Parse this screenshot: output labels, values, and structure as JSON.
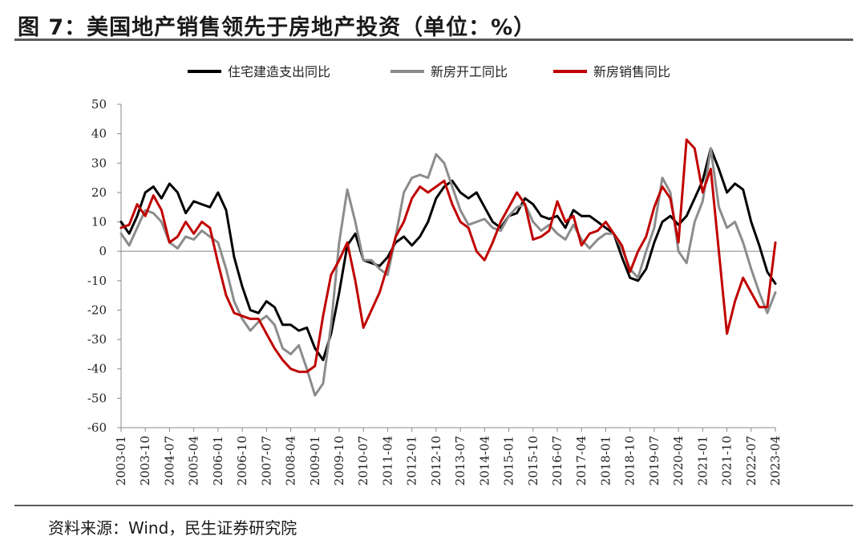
{
  "header": {
    "title": "图 7：美国地产销售领先于房地产投资（单位：%）"
  },
  "footer": {
    "source": "资料来源：Wind，民生证券研究院"
  },
  "chart_data": {
    "type": "line",
    "title": "",
    "xlabel": "",
    "ylabel": "",
    "ylim": [
      -60,
      50
    ],
    "yticks": [
      50,
      40,
      30,
      20,
      10,
      0,
      -10,
      -20,
      -30,
      -40,
      -50,
      -60
    ],
    "xticks": [
      "2003-01",
      "2003-10",
      "2004-07",
      "2005-04",
      "2006-01",
      "2006-10",
      "2007-07",
      "2008-04",
      "2009-01",
      "2009-10",
      "2010-07",
      "2011-04",
      "2012-01",
      "2012-10",
      "2013-07",
      "2014-04",
      "2015-01",
      "2015-10",
      "2016-07",
      "2017-04",
      "2018-01",
      "2018-10",
      "2019-07",
      "2020-04",
      "2021-01",
      "2021-10",
      "2022-07",
      "2023-04"
    ],
    "x_range": [
      "2003-01",
      "2023-04"
    ],
    "legend_position": "top",
    "grid": false,
    "series": [
      {
        "name": "住宅建造支出同比",
        "color": "#000000",
        "points": [
          [
            "2003-01",
            10
          ],
          [
            "2003-04",
            6
          ],
          [
            "2003-07",
            12
          ],
          [
            "2003-10",
            20
          ],
          [
            "2004-01",
            22
          ],
          [
            "2004-04",
            18
          ],
          [
            "2004-07",
            23
          ],
          [
            "2004-10",
            20
          ],
          [
            "2005-01",
            13
          ],
          [
            "2005-04",
            17
          ],
          [
            "2005-07",
            16
          ],
          [
            "2005-10",
            15
          ],
          [
            "2006-01",
            20
          ],
          [
            "2006-04",
            14
          ],
          [
            "2006-07",
            -2
          ],
          [
            "2006-10",
            -12
          ],
          [
            "2007-01",
            -20
          ],
          [
            "2007-04",
            -21
          ],
          [
            "2007-07",
            -17
          ],
          [
            "2007-10",
            -19
          ],
          [
            "2008-01",
            -25
          ],
          [
            "2008-04",
            -25
          ],
          [
            "2008-07",
            -27
          ],
          [
            "2008-10",
            -26
          ],
          [
            "2009-01",
            -33
          ],
          [
            "2009-04",
            -37
          ],
          [
            "2009-07",
            -28
          ],
          [
            "2009-10",
            -14
          ],
          [
            "2010-01",
            2
          ],
          [
            "2010-04",
            6
          ],
          [
            "2010-07",
            -3
          ],
          [
            "2010-10",
            -4
          ],
          [
            "2011-01",
            -5
          ],
          [
            "2011-04",
            -2
          ],
          [
            "2011-07",
            3
          ],
          [
            "2011-10",
            5
          ],
          [
            "2012-01",
            2
          ],
          [
            "2012-04",
            5
          ],
          [
            "2012-07",
            10
          ],
          [
            "2012-10",
            18
          ],
          [
            "2013-01",
            22
          ],
          [
            "2013-04",
            24
          ],
          [
            "2013-07",
            20
          ],
          [
            "2013-10",
            18
          ],
          [
            "2014-01",
            20
          ],
          [
            "2014-04",
            15
          ],
          [
            "2014-07",
            10
          ],
          [
            "2014-10",
            8
          ],
          [
            "2015-01",
            12
          ],
          [
            "2015-04",
            13
          ],
          [
            "2015-07",
            18
          ],
          [
            "2015-10",
            16
          ],
          [
            "2016-01",
            12
          ],
          [
            "2016-04",
            11
          ],
          [
            "2016-07",
            12
          ],
          [
            "2016-10",
            8
          ],
          [
            "2017-01",
            14
          ],
          [
            "2017-04",
            12
          ],
          [
            "2017-07",
            12
          ],
          [
            "2017-10",
            10
          ],
          [
            "2018-01",
            8
          ],
          [
            "2018-04",
            6
          ],
          [
            "2018-07",
            -2
          ],
          [
            "2018-10",
            -9
          ],
          [
            "2019-01",
            -10
          ],
          [
            "2019-04",
            -6
          ],
          [
            "2019-07",
            3
          ],
          [
            "2019-10",
            10
          ],
          [
            "2020-01",
            12
          ],
          [
            "2020-04",
            9
          ],
          [
            "2020-07",
            12
          ],
          [
            "2020-10",
            18
          ],
          [
            "2021-01",
            24
          ],
          [
            "2021-04",
            35
          ],
          [
            "2021-07",
            28
          ],
          [
            "2021-10",
            20
          ],
          [
            "2022-01",
            23
          ],
          [
            "2022-04",
            21
          ],
          [
            "2022-07",
            10
          ],
          [
            "2022-10",
            2
          ],
          [
            "2023-01",
            -7
          ],
          [
            "2023-04",
            -11
          ]
        ]
      },
      {
        "name": "新房开工同比",
        "color": "#8c8c8c",
        "points": [
          [
            "2003-01",
            6
          ],
          [
            "2003-04",
            2
          ],
          [
            "2003-07",
            8
          ],
          [
            "2003-10",
            14
          ],
          [
            "2004-01",
            13
          ],
          [
            "2004-04",
            10
          ],
          [
            "2004-07",
            3
          ],
          [
            "2004-10",
            1
          ],
          [
            "2005-01",
            5
          ],
          [
            "2005-04",
            4
          ],
          [
            "2005-07",
            7
          ],
          [
            "2005-10",
            5
          ],
          [
            "2006-01",
            3
          ],
          [
            "2006-04",
            -6
          ],
          [
            "2006-07",
            -17
          ],
          [
            "2006-10",
            -23
          ],
          [
            "2007-01",
            -27
          ],
          [
            "2007-04",
            -24
          ],
          [
            "2007-07",
            -22
          ],
          [
            "2007-10",
            -25
          ],
          [
            "2008-01",
            -33
          ],
          [
            "2008-04",
            -35
          ],
          [
            "2008-07",
            -32
          ],
          [
            "2008-10",
            -40
          ],
          [
            "2009-01",
            -49
          ],
          [
            "2009-04",
            -45
          ],
          [
            "2009-07",
            -25
          ],
          [
            "2009-10",
            3
          ],
          [
            "2010-01",
            21
          ],
          [
            "2010-04",
            10
          ],
          [
            "2010-07",
            -3
          ],
          [
            "2010-10",
            -3
          ],
          [
            "2011-01",
            -6
          ],
          [
            "2011-04",
            -8
          ],
          [
            "2011-07",
            5
          ],
          [
            "2011-10",
            20
          ],
          [
            "2012-01",
            25
          ],
          [
            "2012-04",
            26
          ],
          [
            "2012-07",
            25
          ],
          [
            "2012-10",
            33
          ],
          [
            "2013-01",
            30
          ],
          [
            "2013-04",
            22
          ],
          [
            "2013-07",
            14
          ],
          [
            "2013-10",
            9
          ],
          [
            "2014-01",
            10
          ],
          [
            "2014-04",
            11
          ],
          [
            "2014-07",
            8
          ],
          [
            "2014-10",
            7
          ],
          [
            "2015-01",
            12
          ],
          [
            "2015-04",
            15
          ],
          [
            "2015-07",
            16
          ],
          [
            "2015-10",
            10
          ],
          [
            "2016-01",
            7
          ],
          [
            "2016-04",
            9
          ],
          [
            "2016-07",
            6
          ],
          [
            "2016-10",
            4
          ],
          [
            "2017-01",
            9
          ],
          [
            "2017-04",
            4
          ],
          [
            "2017-07",
            1
          ],
          [
            "2017-10",
            4
          ],
          [
            "2018-01",
            6
          ],
          [
            "2018-04",
            6
          ],
          [
            "2018-07",
            1
          ],
          [
            "2018-10",
            -6
          ],
          [
            "2019-01",
            -9
          ],
          [
            "2019-04",
            0
          ],
          [
            "2019-07",
            8
          ],
          [
            "2019-10",
            25
          ],
          [
            "2020-01",
            20
          ],
          [
            "2020-04",
            0
          ],
          [
            "2020-07",
            -4
          ],
          [
            "2020-10",
            10
          ],
          [
            "2021-01",
            17
          ],
          [
            "2021-04",
            35
          ],
          [
            "2021-07",
            15
          ],
          [
            "2021-10",
            8
          ],
          [
            "2022-01",
            10
          ],
          [
            "2022-04",
            3
          ],
          [
            "2022-07",
            -6
          ],
          [
            "2022-10",
            -14
          ],
          [
            "2023-01",
            -21
          ],
          [
            "2023-04",
            -14
          ]
        ]
      },
      {
        "name": "新房销售同比",
        "color": "#c00000",
        "points": [
          [
            "2003-01",
            8
          ],
          [
            "2003-04",
            9
          ],
          [
            "2003-07",
            16
          ],
          [
            "2003-10",
            12
          ],
          [
            "2004-01",
            19
          ],
          [
            "2004-04",
            14
          ],
          [
            "2004-07",
            3
          ],
          [
            "2004-10",
            5
          ],
          [
            "2005-01",
            10
          ],
          [
            "2005-04",
            6
          ],
          [
            "2005-07",
            10
          ],
          [
            "2005-10",
            8
          ],
          [
            "2006-01",
            -4
          ],
          [
            "2006-04",
            -15
          ],
          [
            "2006-07",
            -21
          ],
          [
            "2006-10",
            -22
          ],
          [
            "2007-01",
            -23
          ],
          [
            "2007-04",
            -23
          ],
          [
            "2007-07",
            -28
          ],
          [
            "2007-10",
            -33
          ],
          [
            "2008-01",
            -37
          ],
          [
            "2008-04",
            -40
          ],
          [
            "2008-07",
            -41
          ],
          [
            "2008-10",
            -41
          ],
          [
            "2009-01",
            -39
          ],
          [
            "2009-04",
            -22
          ],
          [
            "2009-07",
            -8
          ],
          [
            "2009-10",
            -3
          ],
          [
            "2010-01",
            3
          ],
          [
            "2010-04",
            -10
          ],
          [
            "2010-07",
            -26
          ],
          [
            "2010-10",
            -20
          ],
          [
            "2011-01",
            -14
          ],
          [
            "2011-04",
            -5
          ],
          [
            "2011-07",
            5
          ],
          [
            "2011-10",
            10
          ],
          [
            "2012-01",
            18
          ],
          [
            "2012-04",
            22
          ],
          [
            "2012-07",
            20
          ],
          [
            "2012-10",
            22
          ],
          [
            "2013-01",
            24
          ],
          [
            "2013-04",
            16
          ],
          [
            "2013-07",
            10
          ],
          [
            "2013-10",
            8
          ],
          [
            "2014-01",
            0
          ],
          [
            "2014-04",
            -3
          ],
          [
            "2014-07",
            3
          ],
          [
            "2014-10",
            10
          ],
          [
            "2015-01",
            15
          ],
          [
            "2015-04",
            20
          ],
          [
            "2015-07",
            16
          ],
          [
            "2015-10",
            4
          ],
          [
            "2016-01",
            5
          ],
          [
            "2016-04",
            7
          ],
          [
            "2016-07",
            17
          ],
          [
            "2016-10",
            10
          ],
          [
            "2017-01",
            12
          ],
          [
            "2017-04",
            2
          ],
          [
            "2017-07",
            6
          ],
          [
            "2017-10",
            7
          ],
          [
            "2018-01",
            10
          ],
          [
            "2018-04",
            6
          ],
          [
            "2018-07",
            2
          ],
          [
            "2018-10",
            -7
          ],
          [
            "2019-01",
            0
          ],
          [
            "2019-04",
            5
          ],
          [
            "2019-07",
            15
          ],
          [
            "2019-10",
            22
          ],
          [
            "2020-01",
            18
          ],
          [
            "2020-04",
            3
          ],
          [
            "2020-07",
            38
          ],
          [
            "2020-10",
            35
          ],
          [
            "2021-01",
            20
          ],
          [
            "2021-04",
            28
          ],
          [
            "2021-07",
            0
          ],
          [
            "2021-10",
            -28
          ],
          [
            "2022-01",
            -17
          ],
          [
            "2022-04",
            -9
          ],
          [
            "2022-07",
            -14
          ],
          [
            "2022-10",
            -19
          ],
          [
            "2023-01",
            -19
          ],
          [
            "2023-04",
            3
          ]
        ]
      }
    ]
  }
}
